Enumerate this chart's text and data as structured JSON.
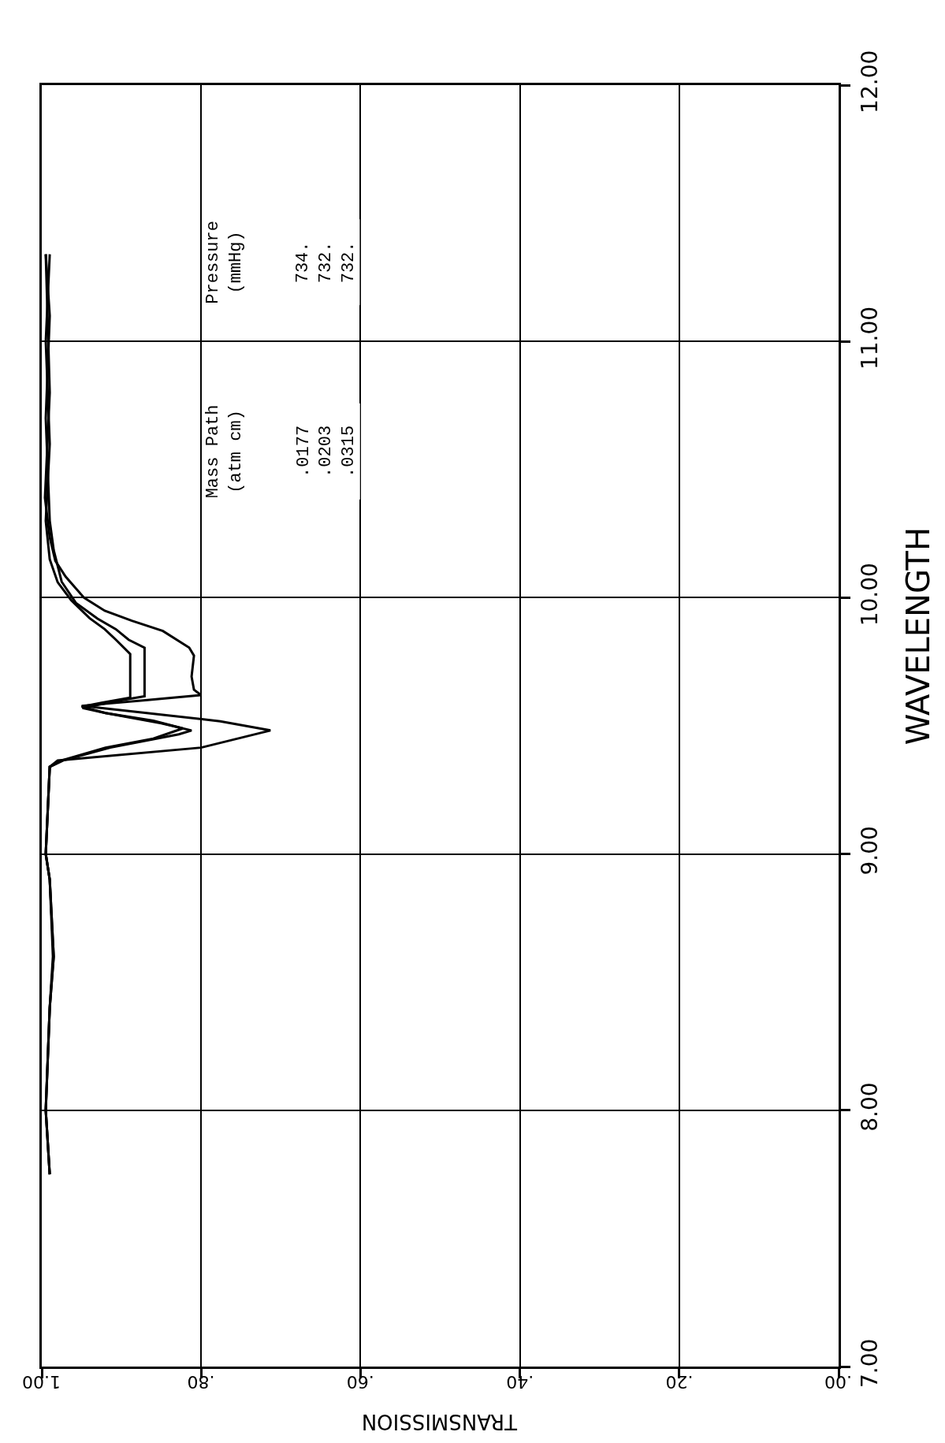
{
  "chart_data": {
    "type": "line",
    "xlabel": "TRANSMISSION",
    "ylabel": "WAVELENGTH",
    "xlim": [
      1,
      0
    ],
    "ylim": [
      7,
      12
    ],
    "xticks": [
      {
        "value": 1,
        "label": "1.00"
      },
      {
        "value": 0.8,
        "label": ".80"
      },
      {
        "value": 0.6,
        "label": ".60"
      },
      {
        "value": 0.4,
        "label": ".40"
      },
      {
        "value": 0.2,
        "label": ".20"
      },
      {
        "value": 0,
        "label": ".00"
      }
    ],
    "yticks": [
      {
        "value": 7,
        "label": "7.00"
      },
      {
        "value": 8,
        "label": "8.00"
      },
      {
        "value": 9,
        "label": "9.00"
      },
      {
        "value": 10,
        "label": "10.00"
      },
      {
        "value": 11,
        "label": "11.00"
      },
      {
        "value": 12,
        "label": "12.00"
      }
    ],
    "grid": true,
    "orientation": "horizontal",
    "marker": "none",
    "line_style": "solid",
    "annotations": [
      "Mass Path\n(atm cm)\n\n\n.0177\n.0203\n.0315",
      "Pressure\n(mmHg)\n\n\n734.\n732.\n732."
    ],
    "series": [
      {
        "color": "#000000",
        "values": [
          0.99,
          0.995,
          0.99,
          0.985,
          0.99,
          0.995,
          0.99,
          0.975,
          0.92,
          0.86,
          0.823,
          0.86,
          0.92,
          0.95,
          0.925,
          0.889,
          0.889,
          0.907,
          0.921,
          0.94,
          0.963,
          0.98,
          0.99,
          0.995,
          0.99,
          0.995,
          0.99
        ],
        "x": [
          7.75,
          8.0,
          8.4,
          8.6,
          8.9,
          9.0,
          9.34,
          9.365,
          9.415,
          9.45,
          9.49,
          9.52,
          9.55,
          9.575,
          9.59,
          9.61,
          9.78,
          9.836,
          9.877,
          9.92,
          9.99,
          10.06,
          10.15,
          10.3,
          10.6,
          11.0,
          11.34
        ]
      },
      {
        "color": "#000000",
        "values": [
          0.99,
          0.995,
          0.99,
          0.986,
          0.99,
          0.995,
          0.99,
          0.973,
          0.914,
          0.828,
          0.812,
          0.85,
          0.92,
          0.949,
          0.9,
          0.871,
          0.871,
          0.891,
          0.907,
          0.93,
          0.957,
          0.975,
          0.985,
          0.99,
          0.995,
          0.99,
          0.995
        ],
        "x": [
          7.75,
          8.0,
          8.4,
          8.6,
          8.9,
          9.0,
          9.34,
          9.365,
          9.415,
          9.467,
          9.482,
          9.51,
          9.55,
          9.57,
          9.6,
          9.615,
          9.805,
          9.836,
          9.877,
          9.918,
          9.979,
          10.062,
          10.185,
          10.3,
          10.7,
          11.1,
          11.34
        ]
      },
      {
        "color": "#000000",
        "values": [
          0.99,
          0.995,
          0.99,
          0.985,
          0.99,
          0.995,
          0.99,
          0.98,
          0.8,
          0.713,
          0.776,
          0.924,
          0.95,
          0.87,
          0.8,
          0.809,
          0.812,
          0.809,
          0.815,
          0.848,
          0.887,
          0.921,
          0.947,
          0.97,
          0.983,
          0.99,
          0.996,
          0.99,
          0.995
        ],
        "x": [
          7.75,
          8.0,
          8.4,
          8.6,
          8.9,
          9.0,
          9.34,
          9.365,
          9.415,
          9.482,
          9.518,
          9.569,
          9.578,
          9.6,
          9.62,
          9.641,
          9.692,
          9.774,
          9.805,
          9.87,
          9.91,
          9.949,
          10.0,
          10.082,
          10.144,
          10.236,
          10.39,
          10.8,
          11.34
        ]
      }
    ]
  }
}
